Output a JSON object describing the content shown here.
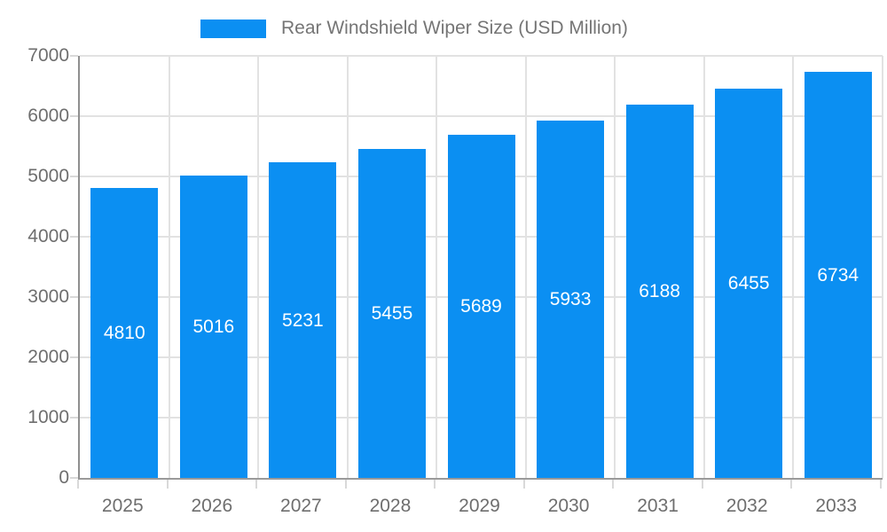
{
  "legend": {
    "series_label": "Rear Windshield Wiper Size (USD Million)"
  },
  "chart_data": {
    "type": "bar",
    "title": "Rear Windshield Wiper Size (USD Million)",
    "categories": [
      "2025",
      "2026",
      "2027",
      "2028",
      "2029",
      "2030",
      "2031",
      "2032",
      "2033"
    ],
    "values": [
      4810,
      5016,
      5231,
      5455,
      5689,
      5933,
      6188,
      6455,
      6734
    ],
    "xlabel": "",
    "ylabel": "",
    "ylim": [
      0,
      7000
    ],
    "yticks": [
      0,
      1000,
      2000,
      3000,
      4000,
      5000,
      6000,
      7000
    ],
    "grid": true,
    "legend_position": "top",
    "value_labels": "inside-center"
  },
  "colors": {
    "bar": "#0b8ff2",
    "bar_label": "#ffffff",
    "axis_text": "#6e6e6e",
    "legend_text": "#757575",
    "gridline": "#e2e2e2",
    "axis_line": "#8f8f8f"
  }
}
